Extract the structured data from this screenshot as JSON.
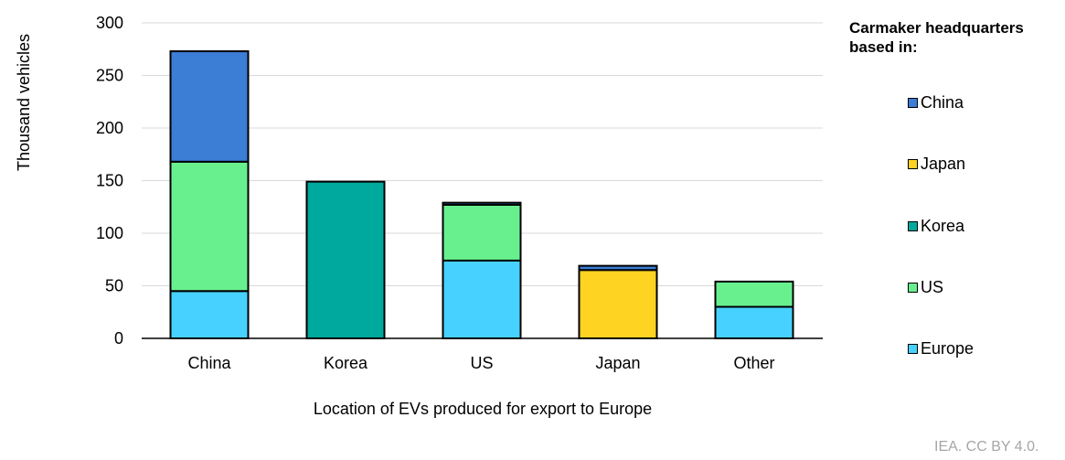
{
  "chart_data": {
    "type": "bar",
    "stacked": true,
    "categories": [
      "China",
      "Korea",
      "US",
      "Japan",
      "Other"
    ],
    "series": [
      {
        "name": "Europe",
        "color": "#47d1ff",
        "values": [
          45,
          0,
          74,
          0,
          30
        ]
      },
      {
        "name": "US",
        "color": "#68f08f",
        "values": [
          123,
          0,
          53,
          0,
          24
        ]
      },
      {
        "name": "Korea",
        "color": "#00a99d",
        "values": [
          0,
          149,
          0,
          0,
          0
        ]
      },
      {
        "name": "Japan",
        "color": "#ffd322",
        "values": [
          0,
          0,
          0,
          65,
          0
        ]
      },
      {
        "name": "China",
        "color": "#3c7dd6",
        "values": [
          105,
          0,
          2,
          4,
          0
        ]
      }
    ],
    "xlabel": "Location of EVs produced for export to Europe",
    "ylabel": "Thousand vehicles",
    "ylim": [
      0,
      300
    ],
    "yticks": [
      "0",
      "50",
      "100",
      "150",
      "200",
      "250",
      "300"
    ],
    "grid": true,
    "legend": {
      "title": "Carmaker headquarters based in:",
      "placement": "right",
      "entries": [
        "China",
        "Japan",
        "Korea",
        "US",
        "Europe"
      ]
    }
  },
  "credit": "IEA. CC BY 4.0."
}
